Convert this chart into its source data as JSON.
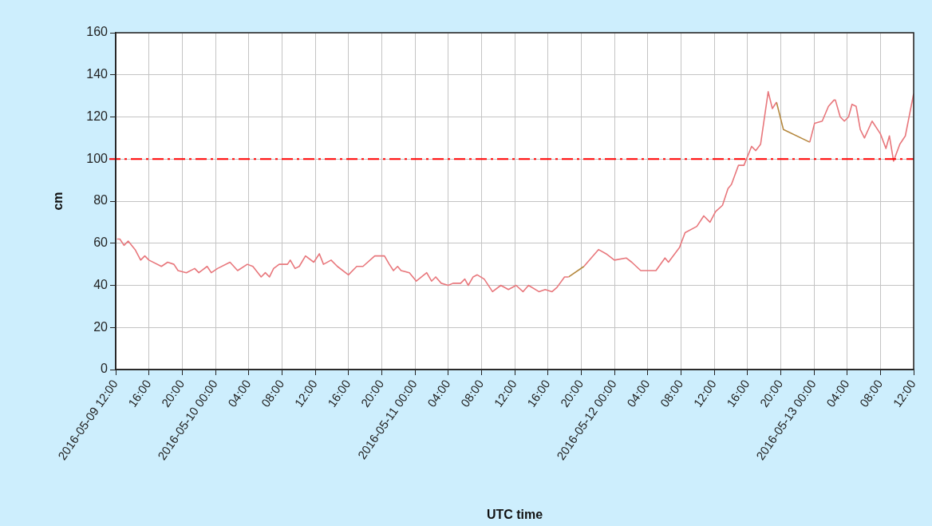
{
  "chart_data": {
    "type": "line",
    "xlabel": "UTC time",
    "ylabel": "cm",
    "xlim": [
      "2016-05-09T12:00",
      "2016-05-13T12:00"
    ],
    "xticks": [
      {
        "value": "2016-05-09T12:00",
        "label": "2016-05-09 12:00"
      },
      {
        "value": "2016-05-09T16:00",
        "label": "16:00"
      },
      {
        "value": "2016-05-09T20:00",
        "label": "20:00"
      },
      {
        "value": "2016-05-10T00:00",
        "label": "2016-05-10 00:00"
      },
      {
        "value": "2016-05-10T04:00",
        "label": "04:00"
      },
      {
        "value": "2016-05-10T08:00",
        "label": "08:00"
      },
      {
        "value": "2016-05-10T12:00",
        "label": "12:00"
      },
      {
        "value": "2016-05-10T16:00",
        "label": "16:00"
      },
      {
        "value": "2016-05-10T20:00",
        "label": "20:00"
      },
      {
        "value": "2016-05-11T00:00",
        "label": "2016-05-11 00:00"
      },
      {
        "value": "2016-05-11T04:00",
        "label": "04:00"
      },
      {
        "value": "2016-05-11T08:00",
        "label": "08:00"
      },
      {
        "value": "2016-05-11T12:00",
        "label": "12:00"
      },
      {
        "value": "2016-05-11T16:00",
        "label": "16:00"
      },
      {
        "value": "2016-05-11T20:00",
        "label": "20:00"
      },
      {
        "value": "2016-05-12T00:00",
        "label": "2016-05-12 00:00"
      },
      {
        "value": "2016-05-12T04:00",
        "label": "04:00"
      },
      {
        "value": "2016-05-12T08:00",
        "label": "08:00"
      },
      {
        "value": "2016-05-12T12:00",
        "label": "12:00"
      },
      {
        "value": "2016-05-12T16:00",
        "label": "16:00"
      },
      {
        "value": "2016-05-12T20:00",
        "label": "20:00"
      },
      {
        "value": "2016-05-13T00:00",
        "label": "2016-05-13 00:00"
      },
      {
        "value": "2016-05-13T04:00",
        "label": "04:00"
      },
      {
        "value": "2016-05-13T08:00",
        "label": "08:00"
      },
      {
        "value": "2016-05-13T12:00",
        "label": "12:00"
      }
    ],
    "ylim": [
      0,
      160
    ],
    "yticks": [
      0,
      20,
      40,
      60,
      80,
      100,
      120,
      140,
      160
    ],
    "grid": true,
    "marker": "none",
    "line_style": "solid",
    "ref_lines": [
      {
        "axis": "y",
        "value": 100,
        "color": "#ff0000",
        "line_style": "dashed"
      }
    ],
    "series": [
      {
        "color": "#e8777c",
        "x": [
          "2016-05-09T12:10",
          "2016-05-09T12:30",
          "2016-05-09T13:00",
          "2016-05-09T13:30",
          "2016-05-09T14:20",
          "2016-05-09T15:00",
          "2016-05-09T15:30",
          "2016-05-09T16:00",
          "2016-05-09T17:30",
          "2016-05-09T18:15",
          "2016-05-09T19:00",
          "2016-05-09T19:30",
          "2016-05-09T20:30",
          "2016-05-09T21:30",
          "2016-05-09T22:00",
          "2016-05-09T23:00",
          "2016-05-09T23:30",
          "2016-05-10T00:15",
          "2016-05-10T01:45",
          "2016-05-10T02:40",
          "2016-05-10T03:50",
          "2016-05-10T04:30",
          "2016-05-10T05:30",
          "2016-05-10T06:00",
          "2016-05-10T06:30",
          "2016-05-10T07:00",
          "2016-05-10T07:40",
          "2016-05-10T08:40",
          "2016-05-10T09:00",
          "2016-05-10T09:35",
          "2016-05-10T10:05",
          "2016-05-10T10:50",
          "2016-05-10T11:50",
          "2016-05-10T12:30",
          "2016-05-10T13:00",
          "2016-05-10T13:55",
          "2016-05-10T14:40",
          "2016-05-10T16:00",
          "2016-05-10T17:00",
          "2016-05-10T17:45",
          "2016-05-10T19:10",
          "2016-05-10T20:20",
          "2016-05-10T20:55",
          "2016-05-10T21:25",
          "2016-05-10T21:55",
          "2016-05-10T22:20",
          "2016-05-10T23:20",
          "2016-05-11T00:10",
          "2016-05-11T01:25",
          "2016-05-11T02:00",
          "2016-05-11T02:30",
          "2016-05-11T03:10",
          "2016-05-11T04:00",
          "2016-05-11T04:35",
          "2016-05-11T05:30",
          "2016-05-11T06:00",
          "2016-05-11T06:25",
          "2016-05-11T07:00",
          "2016-05-11T07:30",
          "2016-05-11T08:20",
          "2016-05-11T09:20",
          "2016-05-11T10:20",
          "2016-05-11T11:15",
          "2016-05-11T12:10",
          "2016-05-11T13:00",
          "2016-05-11T13:40",
          "2016-05-11T14:55",
          "2016-05-11T15:40",
          "2016-05-11T16:30",
          "2016-05-11T17:05",
          "2016-05-11T18:00",
          "2016-05-11T18:30",
          "2016-05-11T19:30",
          "2016-05-11T20:20",
          "2016-05-11T22:05",
          "2016-05-11T23:00",
          "2016-05-12T00:00",
          "2016-05-12T01:25",
          "2016-05-12T02:05",
          "2016-05-12T03:10",
          "2016-05-12T05:00",
          "2016-05-12T06:05",
          "2016-05-12T06:30",
          "2016-05-12T07:50",
          "2016-05-12T08:30",
          "2016-05-12T09:55",
          "2016-05-12T10:45",
          "2016-05-12T11:30",
          "2016-05-12T12:10",
          "2016-05-12T13:00",
          "2016-05-12T13:40",
          "2016-05-12T14:05",
          "2016-05-12T14:55",
          "2016-05-12T15:35",
          "2016-05-12T16:30",
          "2016-05-12T17:00",
          "2016-05-12T17:35",
          "2016-05-12T18:30",
          "2016-05-12T19:00",
          "2016-05-12T19:30",
          "2016-05-12T21:00",
          "2016-05-12T23:30",
          "2016-05-13T00:05",
          "2016-05-13T01:00",
          "2016-05-13T01:45",
          "2016-05-13T02:25",
          "2016-05-13T02:35",
          "2016-05-13T03:10",
          "2016-05-13T03:40",
          "2016-05-13T04:10",
          "2016-05-13T04:35",
          "2016-05-13T05:05",
          "2016-05-13T05:35",
          "2016-05-13T06:05",
          "2016-05-13T07:00",
          "2016-05-13T08:00",
          "2016-05-13T08:40",
          "2016-05-13T09:05",
          "2016-05-13T09:35",
          "2016-05-13T10:20",
          "2016-05-13T11:00",
          "2016-05-13T12:00"
        ],
        "values": [
          62,
          62,
          59,
          61,
          57,
          52,
          54,
          52,
          49,
          51,
          50,
          47,
          46,
          48,
          46,
          49,
          46,
          48,
          51,
          47,
          50,
          49,
          44,
          46,
          44,
          48,
          50,
          50,
          52,
          48,
          49,
          54,
          51,
          55,
          50,
          52,
          49,
          45,
          49,
          49,
          54,
          54,
          50,
          47,
          49,
          47,
          46,
          42,
          46,
          42,
          44,
          41,
          40,
          41,
          41,
          43,
          40,
          44,
          45,
          43,
          37,
          40,
          38,
          40,
          37,
          40,
          37,
          38,
          37,
          39,
          44,
          44,
          null,
          49,
          57,
          55,
          52,
          53,
          51,
          47,
          47,
          53,
          51,
          58,
          65,
          68,
          73,
          70,
          75,
          78,
          86,
          88,
          97,
          97,
          106,
          104,
          107,
          132,
          124,
          127,
          null,
          108,
          117,
          118,
          125,
          128,
          128,
          120,
          118,
          120,
          126,
          125,
          114,
          110,
          118,
          112,
          105,
          111,
          99,
          107,
          111,
          131
        ]
      },
      {
        "color": "#b5883e",
        "x": [
          "2016-05-11T18:30",
          "2016-05-11T20:20",
          "2016-05-12T00:00",
          "2016-05-12T19:30",
          "2016-05-12T20:20",
          "2016-05-12T23:30"
        ],
        "values": [
          44,
          49,
          null,
          127,
          114,
          108
        ]
      }
    ]
  }
}
